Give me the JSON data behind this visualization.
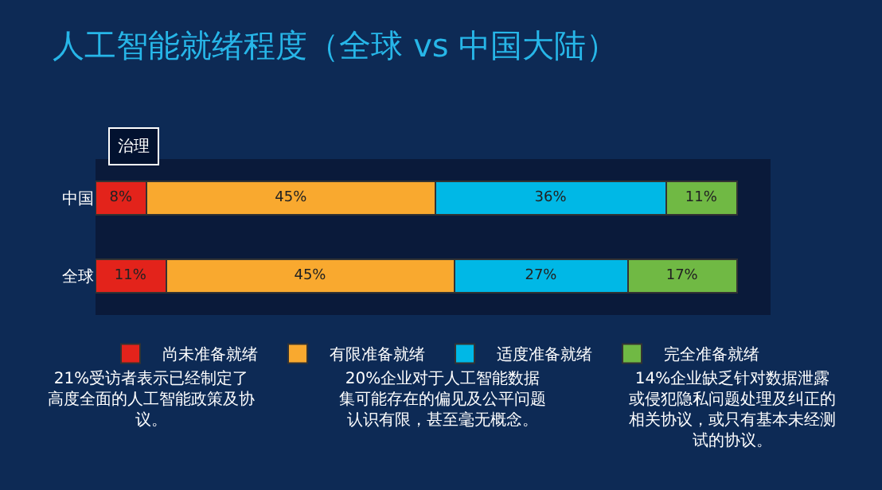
{
  "chart_data": {
    "type": "bar",
    "orientation": "horizontal",
    "stacked": true,
    "title": "人工智能就绪程度（全球 vs 中国大陆）",
    "subtitle": "治理",
    "categories": [
      "中国",
      "全球"
    ],
    "series": [
      {
        "name": "尚未准备就绪",
        "color": "#e3231b",
        "values": [
          8,
          11
        ],
        "value_labels": [
          "8%",
          "11%"
        ]
      },
      {
        "name": "有限准备就绪",
        "color": "#f9a92f",
        "values": [
          45,
          45
        ],
        "value_labels": [
          "45%",
          "45%"
        ]
      },
      {
        "name": "适度准备就绪",
        "color": "#00b8e6",
        "values": [
          36,
          27
        ],
        "value_labels": [
          "36%",
          "27%"
        ]
      },
      {
        "name": "完全准备就绪",
        "color": "#70b944",
        "values": [
          11,
          17
        ],
        "value_labels": [
          "11%",
          "17%"
        ]
      }
    ],
    "legend": "bottom",
    "annotations": [
      "21%受访者表示已经制定了高度全面的人工智能政策及协议。",
      "20%企业对于人工智能数据集可能存在的偏见及公平问题认识有限，甚至毫无概念。",
      "14%企业缺乏针对数据泄露或侵犯隐私问题处理及纠正的相关协议，或只有基本未经测试的协议。"
    ]
  }
}
